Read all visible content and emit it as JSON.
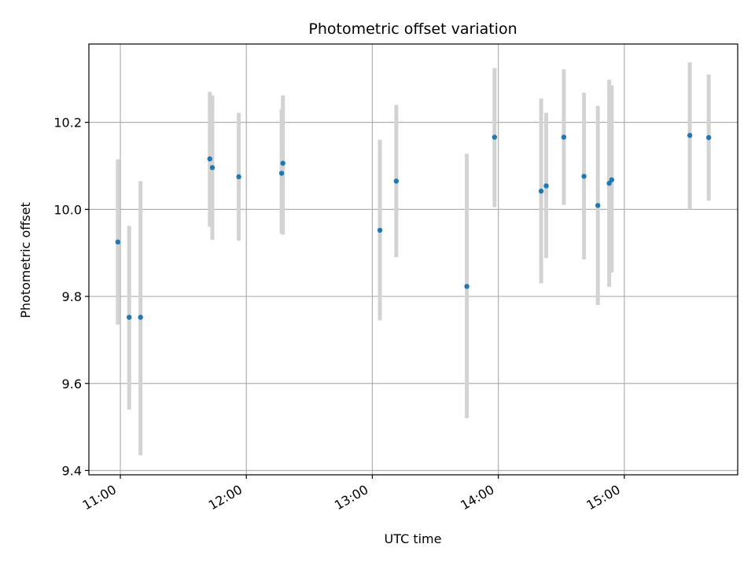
{
  "chart_data": {
    "type": "scatter",
    "title": "Photometric offset variation",
    "xlabel": "UTC time",
    "ylabel": "Photometric offset",
    "x_unit": "hours UTC",
    "xlim": [
      10.75,
      15.9
    ],
    "ylim": [
      9.39,
      10.38
    ],
    "x_ticks": [
      {
        "value": 11,
        "label": "11:00"
      },
      {
        "value": 12,
        "label": "12:00"
      },
      {
        "value": 13,
        "label": "13:00"
      },
      {
        "value": 14,
        "label": "14:00"
      },
      {
        "value": 15,
        "label": "15:00"
      }
    ],
    "y_ticks": [
      {
        "value": 9.4,
        "label": "9.4"
      },
      {
        "value": 9.6,
        "label": "9.6"
      },
      {
        "value": 9.8,
        "label": "9.8"
      },
      {
        "value": 10.0,
        "label": "10.0"
      },
      {
        "value": 10.2,
        "label": "10.2"
      }
    ],
    "grid": true,
    "marker_color": "#1f77b4",
    "errorbar_color": "#d3d3d3",
    "points": [
      {
        "x": 10.98,
        "y": 9.925,
        "ylow": 9.735,
        "yhigh": 10.115
      },
      {
        "x": 11.07,
        "y": 9.752,
        "ylow": 9.54,
        "yhigh": 9.962
      },
      {
        "x": 11.16,
        "y": 9.752,
        "ylow": 9.435,
        "yhigh": 10.065
      },
      {
        "x": 11.71,
        "y": 10.116,
        "ylow": 9.96,
        "yhigh": 10.27
      },
      {
        "x": 11.73,
        "y": 10.096,
        "ylow": 9.93,
        "yhigh": 10.262
      },
      {
        "x": 11.94,
        "y": 10.075,
        "ylow": 9.928,
        "yhigh": 10.222
      },
      {
        "x": 12.28,
        "y": 10.083,
        "ylow": 9.945,
        "yhigh": 10.23
      },
      {
        "x": 12.29,
        "y": 10.106,
        "ylow": 9.942,
        "yhigh": 10.262
      },
      {
        "x": 13.06,
        "y": 9.952,
        "ylow": 9.745,
        "yhigh": 10.16
      },
      {
        "x": 13.19,
        "y": 10.065,
        "ylow": 9.89,
        "yhigh": 10.24
      },
      {
        "x": 13.75,
        "y": 9.823,
        "ylow": 9.52,
        "yhigh": 10.128
      },
      {
        "x": 13.97,
        "y": 10.166,
        "ylow": 10.005,
        "yhigh": 10.325
      },
      {
        "x": 14.34,
        "y": 10.042,
        "ylow": 9.83,
        "yhigh": 10.255
      },
      {
        "x": 14.38,
        "y": 10.054,
        "ylow": 9.888,
        "yhigh": 10.222
      },
      {
        "x": 14.52,
        "y": 10.166,
        "ylow": 10.01,
        "yhigh": 10.322
      },
      {
        "x": 14.68,
        "y": 10.076,
        "ylow": 9.885,
        "yhigh": 10.268
      },
      {
        "x": 14.79,
        "y": 10.009,
        "ylow": 9.78,
        "yhigh": 10.238
      },
      {
        "x": 14.88,
        "y": 10.06,
        "ylow": 9.822,
        "yhigh": 10.298
      },
      {
        "x": 14.9,
        "y": 10.068,
        "ylow": 9.855,
        "yhigh": 10.285
      },
      {
        "x": 15.52,
        "y": 10.17,
        "ylow": 10.0,
        "yhigh": 10.338
      },
      {
        "x": 15.67,
        "y": 10.165,
        "ylow": 10.02,
        "yhigh": 10.31
      }
    ]
  }
}
